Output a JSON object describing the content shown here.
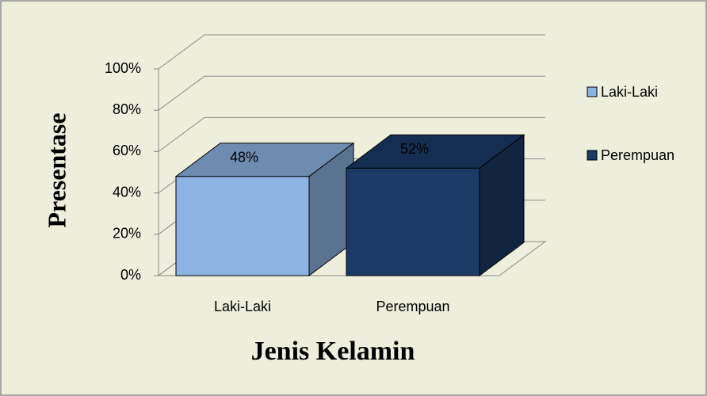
{
  "chart_data": {
    "type": "bar3d",
    "x_label": "Jenis Kelamin",
    "y_label": "Presentase",
    "categories": [
      "Laki-Laki",
      "Perempuan"
    ],
    "values": [
      48,
      52
    ],
    "value_labels": [
      "48%",
      "52%"
    ],
    "colors": [
      "#8db3e2",
      "#1b3a66"
    ],
    "ylim": [
      0,
      100
    ],
    "yticks": [
      {
        "value": 0,
        "label": "0%"
      },
      {
        "value": 20,
        "label": "20%"
      },
      {
        "value": 40,
        "label": "40%"
      },
      {
        "value": 60,
        "label": "60%"
      },
      {
        "value": 80,
        "label": "80%"
      },
      {
        "value": 100,
        "label": "100%"
      }
    ],
    "grid": true,
    "legend": "right"
  }
}
